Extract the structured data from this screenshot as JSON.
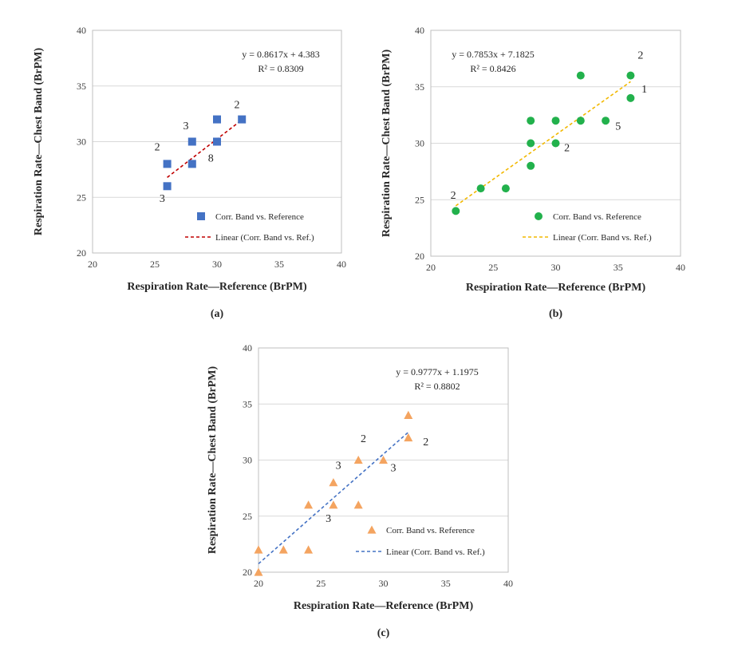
{
  "chart_data": [
    {
      "type": "scatter",
      "panel_label": "(a)",
      "xlabel": "Respiration Rate—Reference (BrPM)",
      "ylabel": "Respiration Rate—Chest Band (BrPM)",
      "xlim": [
        20,
        40
      ],
      "ylim": [
        20,
        40
      ],
      "xticks": [
        20,
        25,
        30,
        35,
        40
      ],
      "yticks": [
        20,
        25,
        30,
        35,
        40
      ],
      "grid": "horizontal",
      "series": [
        {
          "name": "Corr. Band vs. Reference",
          "marker": "square",
          "color": "#4472C4",
          "x": [
            26,
            26,
            28,
            28,
            30,
            30,
            32
          ],
          "y": [
            28,
            26,
            30,
            28,
            32,
            30,
            32
          ]
        }
      ],
      "trendline": {
        "name": "Linear (Corr. Band vs. Ref.)",
        "color": "#C00000",
        "x_range": [
          26,
          32
        ]
      },
      "equation": "y = 0.8617x + 4.383",
      "r2": "R² = 0.8309",
      "equation_values": {
        "slope": 0.8617,
        "intercept": 4.383
      },
      "point_labels": [
        {
          "text": "2",
          "x": 25.2,
          "y": 29.2
        },
        {
          "text": "3",
          "x": 25.6,
          "y": 24.6
        },
        {
          "text": "3",
          "x": 27.5,
          "y": 31.1
        },
        {
          "text": "8",
          "x": 29.5,
          "y": 28.2
        },
        {
          "text": "2",
          "x": 31.6,
          "y": 33.0
        }
      ],
      "legend_position": "bottom-right"
    },
    {
      "type": "scatter",
      "panel_label": "(b)",
      "xlabel": "Respiration Rate—Reference (BrPM)",
      "ylabel": "Respiration Rate—Chest Band (BrPM)",
      "xlim": [
        20,
        40
      ],
      "ylim": [
        20,
        40
      ],
      "xticks": [
        20,
        25,
        30,
        35,
        40
      ],
      "yticks": [
        20,
        25,
        30,
        35,
        40
      ],
      "grid": "horizontal",
      "series": [
        {
          "name": "Corr. Band vs. Reference",
          "marker": "circle",
          "color": "#22B14C",
          "x": [
            22,
            24,
            26,
            28,
            28,
            28,
            30,
            30,
            32,
            32,
            34,
            36,
            36
          ],
          "y": [
            24,
            26,
            26,
            32,
            30,
            28,
            32,
            30,
            36,
            32,
            32,
            36,
            34
          ]
        }
      ],
      "trendline": {
        "name": "Linear (Corr. Band vs. Ref.)",
        "color": "#F2B800",
        "x_range": [
          22,
          36
        ]
      },
      "equation": "y = 0.7853x + 7.1825",
      "r2": "R² = 0.8426",
      "equation_values": {
        "slope": 0.7853,
        "intercept": 7.1825
      },
      "point_labels": [
        {
          "text": "2",
          "x": 21.8,
          "y": 25.1
        },
        {
          "text": "2",
          "x": 30.9,
          "y": 29.3
        },
        {
          "text": "5",
          "x": 35.0,
          "y": 31.2
        },
        {
          "text": "1",
          "x": 37.1,
          "y": 34.5
        },
        {
          "text": "2",
          "x": 36.8,
          "y": 37.5
        }
      ],
      "legend_position": "bottom-right"
    },
    {
      "type": "scatter",
      "panel_label": "(c)",
      "xlabel": "Respiration Rate—Reference (BrPM)",
      "ylabel": "Respiration Rate—Chest Band (BrPM)",
      "xlim": [
        20,
        40
      ],
      "ylim": [
        20,
        40
      ],
      "xticks": [
        20,
        25,
        30,
        35,
        40
      ],
      "yticks": [
        20,
        25,
        30,
        35,
        40
      ],
      "grid": "horizontal",
      "series": [
        {
          "name": "Corr. Band vs. Reference",
          "marker": "triangle",
          "color": "#F4A460",
          "x": [
            20,
            20,
            22,
            24,
            24,
            26,
            26,
            28,
            28,
            30,
            32,
            32
          ],
          "y": [
            22,
            20,
            22,
            26,
            22,
            28,
            26,
            30,
            26,
            30,
            34,
            32
          ]
        }
      ],
      "trendline": {
        "name": "Linear (Corr. Band vs. Ref.)",
        "color": "#4472C4",
        "x_range": [
          20,
          32
        ]
      },
      "equation": "y = 0.9777x + 1.1975",
      "r2": "R² = 0.8802",
      "equation_values": {
        "slope": 0.9777,
        "intercept": 1.1975
      },
      "point_labels": [
        {
          "text": "2",
          "x": 28.4,
          "y": 31.6
        },
        {
          "text": "3",
          "x": 26.4,
          "y": 29.2
        },
        {
          "text": "3",
          "x": 30.8,
          "y": 29.0
        },
        {
          "text": "3",
          "x": 25.6,
          "y": 24.5
        },
        {
          "text": "2",
          "x": 33.4,
          "y": 31.3
        }
      ],
      "legend_position": "bottom-right"
    }
  ]
}
